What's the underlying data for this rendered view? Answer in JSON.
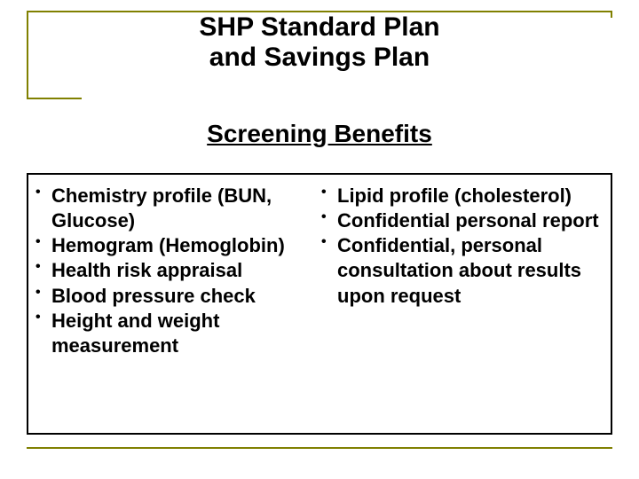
{
  "title": {
    "line1": "SHP Standard Plan",
    "line2": "and Savings Plan",
    "fontsize": 30,
    "color": "#000000"
  },
  "subtitle": {
    "text": "Screening Benefits",
    "fontsize": 28,
    "color": "#000000",
    "underline": true
  },
  "left_column": {
    "items": [
      "Chemistry profile (BUN, Glucose)",
      "Hemogram (Hemoglobin)",
      "Health risk appraisal",
      "Blood pressure check",
      "Height and weight measurement"
    ]
  },
  "right_column": {
    "items": [
      "Lipid profile (cholesterol)",
      "Confidential personal report",
      "Confidential, personal consultation about results upon request"
    ]
  },
  "bullet_fontsize": 22,
  "bullet_color": "#000000",
  "border_color": "#808000",
  "box_border_color": "#000000",
  "background_color": "#ffffff"
}
